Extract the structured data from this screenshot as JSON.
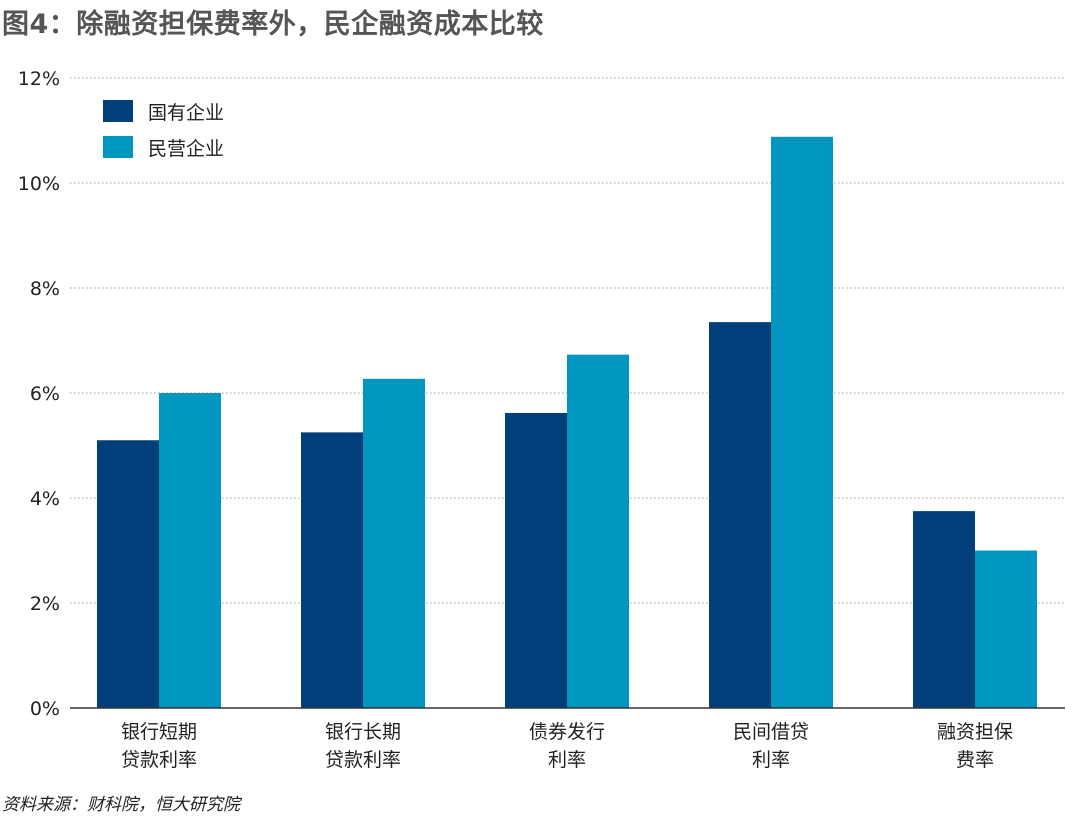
{
  "chart_data": {
    "type": "bar",
    "title": "图4：除融资担保费率外，民企融资成本比较",
    "categories": [
      [
        "银行短期",
        "贷款利率"
      ],
      [
        "银行长期",
        "贷款利率"
      ],
      [
        "债券发行",
        "利率"
      ],
      [
        "民间借贷",
        "利率"
      ],
      [
        "融资担保",
        "费率"
      ]
    ],
    "series": [
      {
        "name": "国有企业",
        "color": "#003f7a",
        "values": [
          5.1,
          5.25,
          5.62,
          7.35,
          3.75
        ]
      },
      {
        "name": "民营企业",
        "color": "#0096c0",
        "values": [
          6.0,
          6.27,
          6.73,
          10.88,
          3.0
        ]
      }
    ],
    "ylim": [
      0,
      12
    ],
    "yticks": [
      0,
      2,
      4,
      6,
      8,
      10,
      12
    ],
    "ytick_suffix": "%",
    "grid": true,
    "legend_position": "top-left",
    "source": "资料来源：财科院，恒大研究院"
  }
}
